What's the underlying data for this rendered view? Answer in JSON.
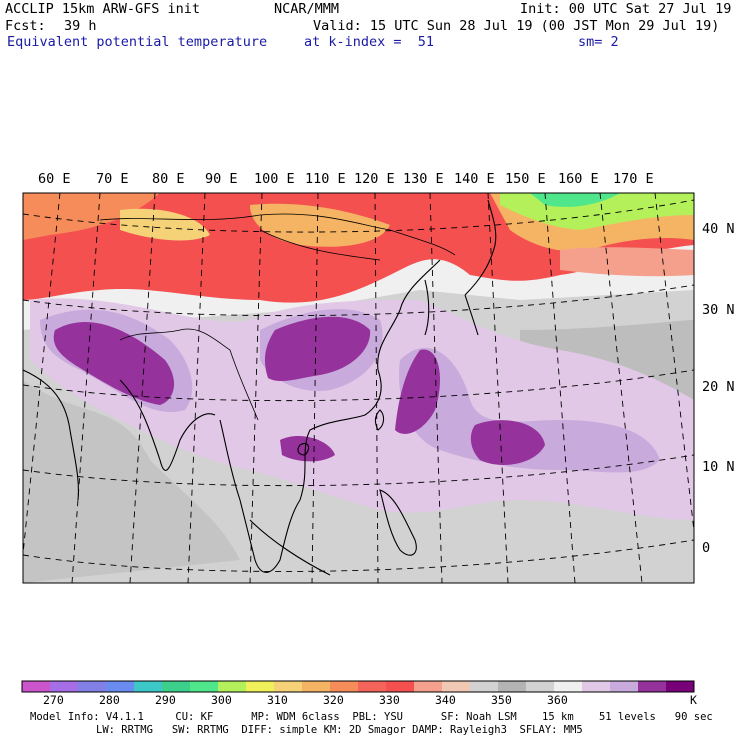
{
  "header": {
    "model": "ACCLIP 15km ARW-GFS init",
    "org": "NCAR/MMM",
    "init": "Init: 00 UTC Sat 27 Jul 19",
    "fcst_label": "Fcst:",
    "fcst_value": "39 h",
    "valid": "Valid: 15 UTC Sun 28 Jul 19 (00 JST Mon 29 Jul 19)",
    "field": "Equivalent potential temperature",
    "level": "at k-index =  51",
    "smoothing": "sm= 2"
  },
  "map": {
    "lon_labels": [
      "60 E",
      "70 E",
      "80 E",
      "90 E",
      "100 E",
      "110 E",
      "120 E",
      "130 E",
      "140 E",
      "150 E",
      "160 E",
      "170 E"
    ],
    "lat_labels": [
      "40 N",
      "30 N",
      "20 N",
      "10 N",
      "0"
    ]
  },
  "colorbar": {
    "colors": [
      "#cc55cc",
      "#a66ee6",
      "#8080e6",
      "#6a8cf0",
      "#3cc8c8",
      "#3cd08c",
      "#50e68c",
      "#b4f05a",
      "#f0f05a",
      "#f5d278",
      "#f5b464",
      "#f58c5a",
      "#f5645a",
      "#f55050",
      "#f5a08c",
      "#f0c8b4",
      "#d2d2d2",
      "#b4b4b4",
      "#d2d2d2",
      "#f0f0f0",
      "#e1c8e6",
      "#c8aadc",
      "#96329b",
      "#780078"
    ],
    "tick_labels": [
      "270",
      "280",
      "290",
      "300",
      "310",
      "320",
      "330",
      "340",
      "350",
      "360"
    ],
    "unit": "K"
  },
  "footer": {
    "line1": "Model Info: V4.1.1     CU: KF      MP: WDM 6class  PBL: YSU      SF: Noah LSM    15 km    51 levels   90 sec",
    "line2": "LW: RRTMG   SW: RRTMG  DIFF: simple KM: 2D Smagor DAMP: Rayleigh3  SFLAY: MM5"
  }
}
